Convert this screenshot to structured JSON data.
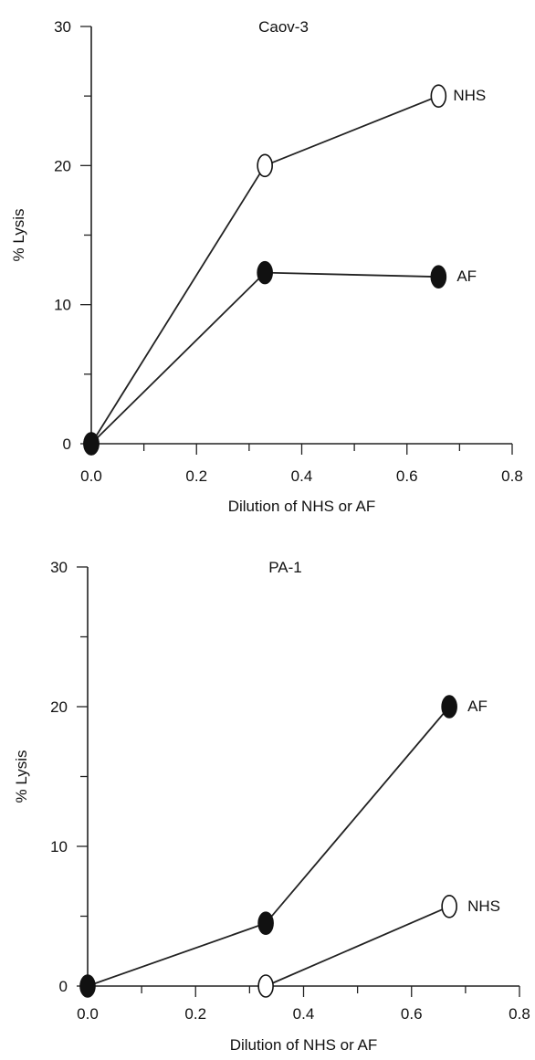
{
  "chart_data": [
    {
      "type": "line",
      "title": "Caov-3",
      "xlabel": "Dilution of NHS or AF",
      "ylabel": "% Lysis",
      "xlim": [
        0.0,
        0.8
      ],
      "ylim": [
        0,
        30
      ],
      "x_ticks": [
        "0.0",
        "0.2",
        "0.4",
        "0.6",
        "0.8"
      ],
      "y_ticks": [
        "0",
        "10",
        "20",
        "30"
      ],
      "series": [
        {
          "name": "NHS",
          "marker": "open-circle",
          "color": "#ffffff",
          "x": [
            0.0,
            0.33,
            0.66
          ],
          "y": [
            0,
            20,
            25
          ]
        },
        {
          "name": "AF",
          "marker": "filled-circle",
          "color": "#111111",
          "x": [
            0.0,
            0.33,
            0.66
          ],
          "y": [
            0,
            12.3,
            12
          ]
        }
      ]
    },
    {
      "type": "line",
      "title": "PA-1",
      "xlabel": "Dilution of NHS or AF",
      "ylabel": "% Lysis",
      "xlim": [
        0.0,
        0.8
      ],
      "ylim": [
        0,
        30
      ],
      "x_ticks": [
        "0.0",
        "0.2",
        "0.4",
        "0.6",
        "0.8"
      ],
      "y_ticks": [
        "0",
        "10",
        "20",
        "30"
      ],
      "series": [
        {
          "name": "AF",
          "marker": "filled-circle",
          "color": "#111111",
          "x": [
            0.0,
            0.33,
            0.67
          ],
          "y": [
            0,
            4.5,
            20
          ]
        },
        {
          "name": "NHS",
          "marker": "open-circle",
          "color": "#ffffff",
          "x": [
            0.33,
            0.67
          ],
          "y": [
            0,
            5.7
          ]
        }
      ]
    }
  ]
}
